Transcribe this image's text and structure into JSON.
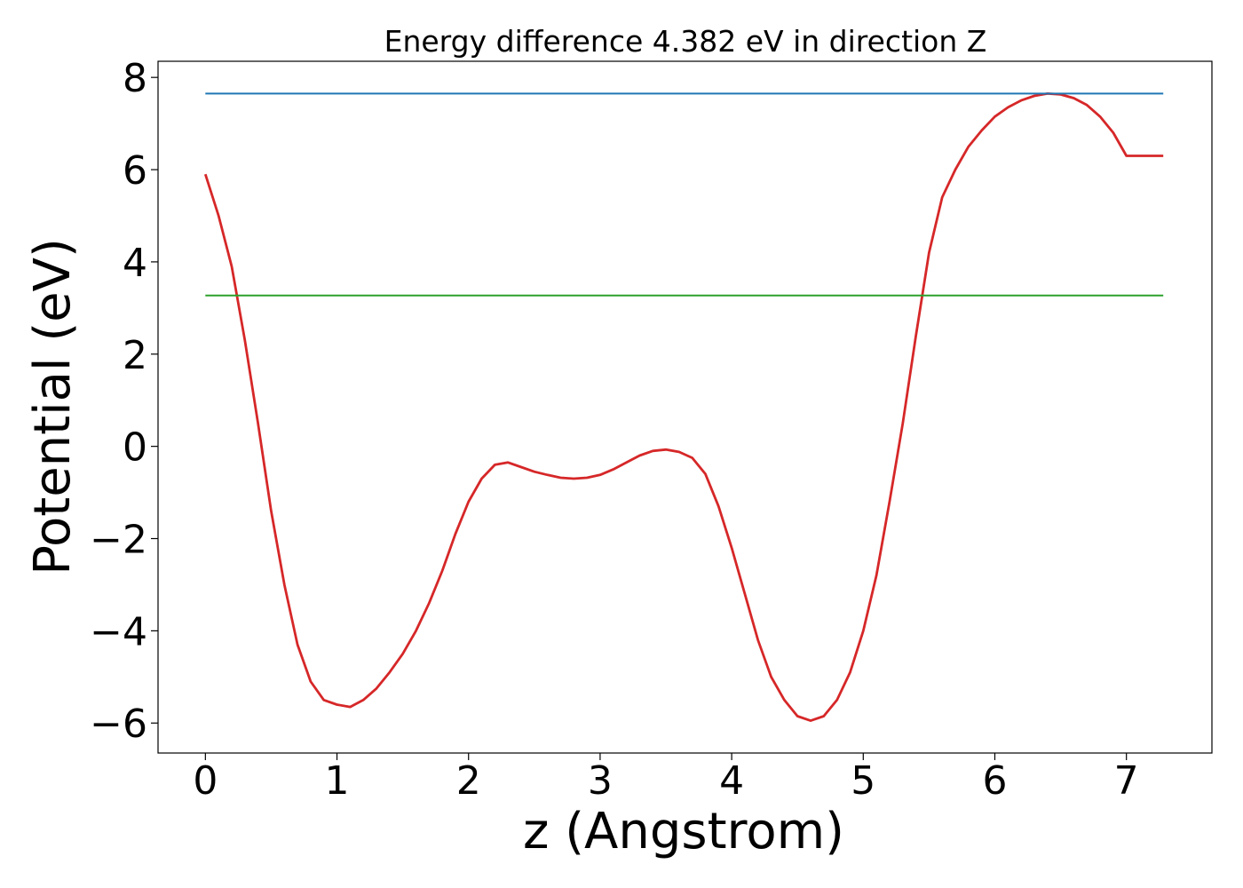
{
  "chart_data": {
    "type": "line",
    "title": "Energy difference 4.382 eV in direction Z",
    "xlabel": "z (Angstrom)",
    "ylabel": "Potential (eV)",
    "xlim": [
      -0.36,
      7.65
    ],
    "ylim": [
      -6.65,
      8.35
    ],
    "xticks": [
      0,
      1,
      2,
      3,
      4,
      5,
      6,
      7
    ],
    "xtick_labels": [
      "0",
      "1",
      "2",
      "3",
      "4",
      "5",
      "6",
      "7"
    ],
    "yticks": [
      -6,
      -4,
      -2,
      0,
      2,
      4,
      6,
      8
    ],
    "ytick_labels": [
      "−6",
      "−4",
      "−2",
      "0",
      "2",
      "4",
      "6",
      "8"
    ],
    "grid": false,
    "legend": "none",
    "series": [
      {
        "color": "#d62728",
        "x": [
          0,
          0.1,
          0.2,
          0.3,
          0.4,
          0.5,
          0.6,
          0.7,
          0.8,
          0.9,
          1.0,
          1.1,
          1.2,
          1.3,
          1.4,
          1.5,
          1.6,
          1.7,
          1.8,
          1.9,
          2.0,
          2.1,
          2.2,
          2.3,
          2.4,
          2.5,
          2.6,
          2.7,
          2.8,
          2.9,
          3.0,
          3.1,
          3.2,
          3.3,
          3.4,
          3.5,
          3.6,
          3.7,
          3.8,
          3.9,
          4.0,
          4.1,
          4.2,
          4.3,
          4.4,
          4.5,
          4.6,
          4.7,
          4.8,
          4.9,
          5.0,
          5.1,
          5.2,
          5.3,
          5.4,
          5.5,
          5.6,
          5.7,
          5.8,
          5.9,
          6.0,
          6.1,
          6.2,
          6.3,
          6.4,
          6.5,
          6.6,
          6.7,
          6.8,
          6.9,
          7.0,
          7.1,
          7.2,
          7.28
        ],
        "y": [
          5.9,
          5.0,
          3.9,
          2.3,
          0.5,
          -1.4,
          -3.0,
          -4.3,
          -5.1,
          -5.5,
          -5.6,
          -5.65,
          -5.5,
          -5.25,
          -4.9,
          -4.5,
          -4.0,
          -3.4,
          -2.7,
          -1.9,
          -1.2,
          -0.7,
          -0.4,
          -0.35,
          -0.45,
          -0.55,
          -0.62,
          -0.68,
          -0.7,
          -0.68,
          -0.62,
          -0.5,
          -0.35,
          -0.2,
          -0.1,
          -0.07,
          -0.12,
          -0.25,
          -0.6,
          -1.3,
          -2.2,
          -3.2,
          -4.2,
          -5.0,
          -5.5,
          -5.85,
          -5.95,
          -5.85,
          -5.5,
          -4.9,
          -4.0,
          -2.8,
          -1.2,
          0.5,
          2.4,
          4.2,
          5.4,
          6.0,
          6.5,
          6.85,
          7.15,
          7.35,
          7.5,
          7.6,
          7.65,
          7.63,
          7.55,
          7.4,
          7.15,
          6.8,
          6.3,
          6.3,
          6.3,
          6.3
        ]
      },
      {
        "color": "#1f77b4",
        "x": [
          0,
          7.28
        ],
        "y": [
          7.65,
          7.65
        ]
      },
      {
        "color": "#2ca02c",
        "x": [
          0,
          7.28
        ],
        "y": [
          3.27,
          3.27
        ]
      }
    ]
  }
}
